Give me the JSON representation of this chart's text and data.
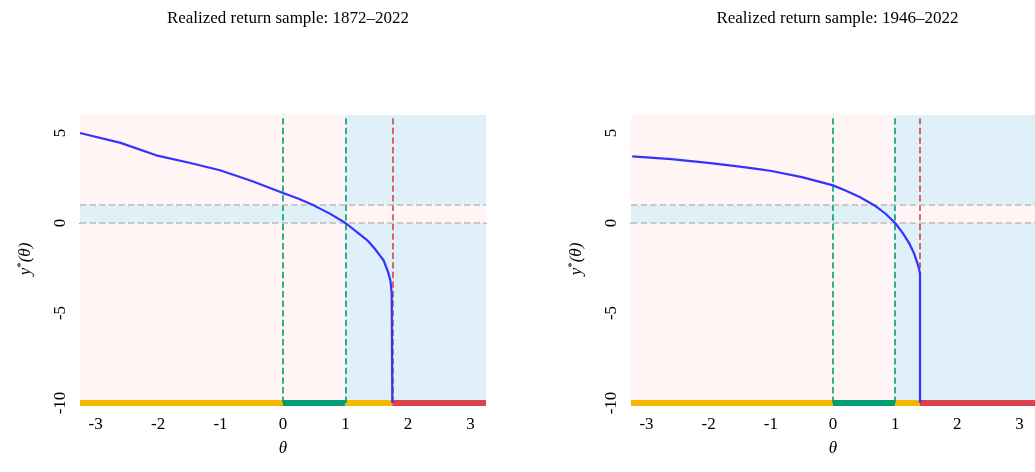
{
  "chart_data": [
    {
      "type": "line",
      "title": "Realized return sample: 1872–2022",
      "xlabel": "θ",
      "ylabel": "y$^{*}$(θ)",
      "xlim": [
        -3.25,
        3.25
      ],
      "ylim": [
        -10,
        6
      ],
      "xticks": [
        -3,
        -2,
        -1,
        0,
        1,
        2,
        3
      ],
      "yticks": [
        -10,
        -5,
        0,
        5
      ],
      "marker": "none",
      "line_style": "solid",
      "series": [
        {
          "color": "#3333ff",
          "x": [
            -3.25,
            -2.6,
            -2.03,
            -1.5,
            -1.01,
            -0.5,
            0,
            0.25,
            0.49,
            0.75,
            1,
            1.2,
            1.35,
            1.47,
            1.55,
            1.61,
            1.68,
            1.72,
            1.74,
            1.75
          ],
          "values": [
            5.0,
            4.45,
            3.76,
            3.35,
            2.93,
            2.33,
            1.67,
            1.35,
            0.98,
            0.52,
            0,
            -0.55,
            -0.96,
            -1.43,
            -1.8,
            -2.07,
            -2.7,
            -3.2,
            -3.9,
            -10
          ]
        },
        {
          "color": "#f5b800",
          "x": [
            -3.25,
            0
          ],
          "values": [
            -10,
            -10
          ]
        },
        {
          "color": "#009e73",
          "x": [
            0,
            1
          ],
          "values": [
            -10,
            -10
          ]
        },
        {
          "color": "#f5b800",
          "x": [
            1,
            1.75
          ],
          "values": [
            -10,
            -10
          ]
        },
        {
          "color": "#d7424f",
          "x": [
            1.75,
            3.25
          ],
          "values": [
            -10,
            -10
          ]
        }
      ],
      "ref_lines": [
        {
          "axis": "x",
          "value": 0,
          "color": "#009e73",
          "line_style": "dashed"
        },
        {
          "axis": "x",
          "value": 1,
          "color": "#009e73",
          "line_style": "dashed"
        },
        {
          "axis": "x",
          "value": 1.75,
          "color": "#d7424f",
          "line_style": "dashed"
        },
        {
          "axis": "y",
          "value": 0,
          "color": "#bbbbbb",
          "line_style": "dashed"
        },
        {
          "axis": "y",
          "value": 1,
          "color": "#bbbbbb",
          "line_style": "dashed"
        }
      ],
      "bands": [
        {
          "axis": "x",
          "from": -3.25,
          "to": 1,
          "color": "#fff5f4"
        },
        {
          "axis": "x",
          "from": 1,
          "to": 3.25,
          "color": "#dff0f8"
        },
        {
          "axis": "y",
          "from": 0,
          "to": 1,
          "color": "#dff0f8"
        },
        {
          "axis": "y",
          "from": 0,
          "to": 1,
          "color": "#fff5f4"
        }
      ]
    },
    {
      "type": "line",
      "title": "Realized return sample: 1946–2022",
      "xlabel": "θ",
      "ylabel": "y$^{*}$(θ)",
      "xlim": [
        -3.25,
        3.25
      ],
      "ylim": [
        -10,
        6
      ],
      "xticks": [
        -3,
        -2,
        -1,
        0,
        1,
        2,
        3
      ],
      "yticks": [
        -10,
        -5,
        0,
        5
      ],
      "marker": "none",
      "line_style": "solid",
      "series": [
        {
          "color": "#3333ff",
          "x": [
            -3.23,
            -2.6,
            -1.97,
            -1.5,
            -0.99,
            -0.5,
            0,
            0.2,
            0.43,
            0.69,
            0.85,
            1,
            1.12,
            1.23,
            1.3,
            1.36,
            1.38,
            1.4,
            1.4
          ],
          "values": [
            3.7,
            3.55,
            3.33,
            3.13,
            2.89,
            2.55,
            2.09,
            1.8,
            1.44,
            0.93,
            0.5,
            0,
            -0.55,
            -1.15,
            -1.65,
            -2.26,
            -2.5,
            -2.81,
            -10
          ]
        },
        {
          "color": "#f5b800",
          "x": [
            -3.25,
            0
          ],
          "values": [
            -10,
            -10
          ]
        },
        {
          "color": "#009e73",
          "x": [
            0,
            1
          ],
          "values": [
            -10,
            -10
          ]
        },
        {
          "color": "#f5b800",
          "x": [
            1,
            1.4
          ],
          "values": [
            -10,
            -10
          ]
        },
        {
          "color": "#d7424f",
          "x": [
            1.4,
            3.25
          ],
          "values": [
            -10,
            -10
          ]
        }
      ],
      "ref_lines": [
        {
          "axis": "x",
          "value": 0,
          "color": "#009e73",
          "line_style": "dashed"
        },
        {
          "axis": "x",
          "value": 1,
          "color": "#009e73",
          "line_style": "dashed"
        },
        {
          "axis": "x",
          "value": 1.4,
          "color": "#d7424f",
          "line_style": "dashed"
        },
        {
          "axis": "y",
          "value": 0,
          "color": "#bbbbbb",
          "line_style": "dashed"
        },
        {
          "axis": "y",
          "value": 1,
          "color": "#bbbbbb",
          "line_style": "dashed"
        }
      ],
      "bands": [
        {
          "axis": "x",
          "from": -3.25,
          "to": 1,
          "color": "#fff5f4"
        },
        {
          "axis": "x",
          "from": 1,
          "to": 3.25,
          "color": "#dff0f8"
        },
        {
          "axis": "y",
          "from": 0,
          "to": 1,
          "color": "#dff0f8"
        },
        {
          "axis": "y",
          "from": 0,
          "to": 1,
          "color": "#fff5f4"
        }
      ]
    }
  ]
}
